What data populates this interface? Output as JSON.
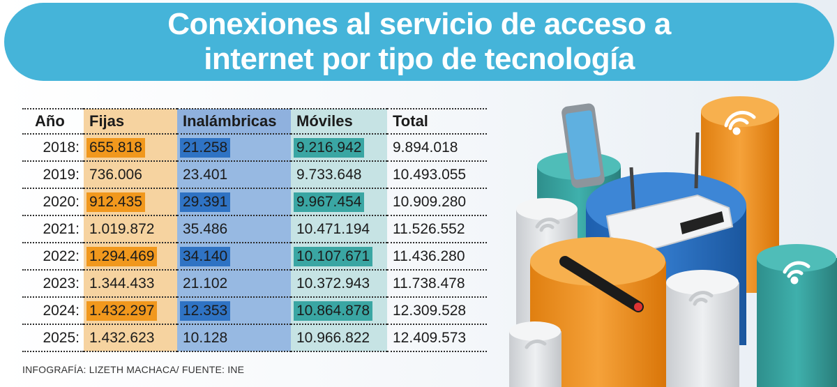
{
  "title": {
    "line1": "Conexiones al servicio de acceso a",
    "line2": "internet por tipo de tecnología"
  },
  "chart_data": {
    "type": "table",
    "columns": [
      "Año",
      "Fijas",
      "Inalámbricas",
      "Móviles",
      "Total"
    ],
    "rows": [
      {
        "year": "2018:",
        "fijas": "655.818",
        "inalambricas": "21.258",
        "moviles": "9.216.942",
        "total": "9.894.018"
      },
      {
        "year": "2019:",
        "fijas": "736.006",
        "inalambricas": "23.401",
        "moviles": "9.733.648",
        "total": "10.493.055"
      },
      {
        "year": "2020:",
        "fijas": "912.435",
        "inalambricas": "29.391",
        "moviles": "9.967.454",
        "total": "10.909.280"
      },
      {
        "year": "2021:",
        "fijas": "1.019.872",
        "inalambricas": "35.486",
        "moviles": "10.471.194",
        "total": "11.526.552"
      },
      {
        "year": "2022:",
        "fijas": "1.294.469",
        "inalambricas": "34.140",
        "moviles": "10.107.671",
        "total": "11.436.280"
      },
      {
        "year": "2023:",
        "fijas": "1.344.433",
        "inalambricas": "21.102",
        "moviles": "10.372.943",
        "total": "11.738.478"
      },
      {
        "year": "2024:",
        "fijas": "1.432.297",
        "inalambricas": "12.353",
        "moviles": "10.864.878",
        "total": "12.309.528"
      },
      {
        "year": "2025:",
        "fijas": "1.432.623",
        "inalambricas": "10.128",
        "moviles": "10.966.822",
        "total": "12.409.573"
      }
    ],
    "colors": {
      "fijas": "#f1981d",
      "fijas_light": "#f6d3a0",
      "inalambricas": "#2f73c4",
      "inalambricas_light": "#97b9e2",
      "moviles": "#3aa6a3",
      "moviles_light": "#c6e3e4",
      "banner": "#45b4d9"
    }
  },
  "credit": "INFOGRAFÍA: LIZETH MACHACA/ FUENTE: INE",
  "illustration": {
    "icons": [
      "smartphone-icon",
      "router-icon",
      "cable-icon",
      "wifi-icon"
    ]
  }
}
